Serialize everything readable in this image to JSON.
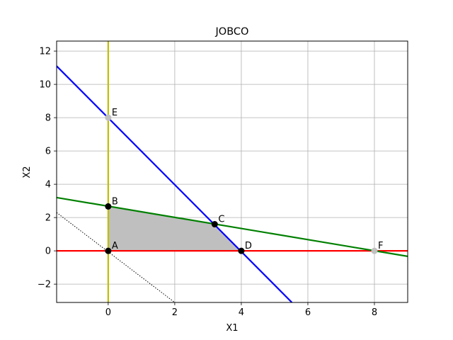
{
  "chart_data": {
    "type": "line",
    "title": "JOBCO",
    "xlabel": "X1",
    "ylabel": "X2",
    "xlim": [
      -1.55,
      9.0
    ],
    "ylim": [
      -3.1,
      12.6
    ],
    "grid": true,
    "xticks": [
      0,
      2,
      4,
      6,
      8
    ],
    "yticks": [
      -2,
      0,
      2,
      4,
      6,
      8,
      10,
      12
    ],
    "constraint_lines": [
      {
        "id": "x1-zero",
        "color": "#bfbf00",
        "points": [
          [
            0,
            -3.1
          ],
          [
            0,
            12.6
          ]
        ]
      },
      {
        "id": "x2-zero",
        "color": "#ff0000",
        "points": [
          [
            -1.55,
            0
          ],
          [
            9.0,
            0
          ]
        ]
      },
      {
        "id": "blue-constraint",
        "color": "#0000ff",
        "points": [
          [
            -1.55,
            11.1
          ],
          [
            5.52,
            -3.1
          ]
        ]
      },
      {
        "id": "green-constraint",
        "color": "#008000",
        "points": [
          [
            -1.55,
            3.2
          ],
          [
            9.0,
            -0.33
          ]
        ]
      },
      {
        "id": "objective-dotted",
        "color": "#000000",
        "dashed": true,
        "points": [
          [
            -1.55,
            2.3
          ],
          [
            2.0,
            -3.1
          ]
        ]
      }
    ],
    "feasible_region": {
      "color": "#bfbfbf",
      "points": [
        [
          0,
          0
        ],
        [
          0,
          2.67
        ],
        [
          3.2,
          1.6
        ],
        [
          4,
          0
        ]
      ]
    },
    "points": [
      {
        "label": "A",
        "x": 0,
        "y": 0,
        "color": "#000000"
      },
      {
        "label": "B",
        "x": 0,
        "y": 2.67,
        "color": "#000000"
      },
      {
        "label": "C",
        "x": 3.2,
        "y": 1.6,
        "color": "#000000"
      },
      {
        "label": "D",
        "x": 4,
        "y": 0,
        "color": "#000000"
      },
      {
        "label": "E",
        "x": 0,
        "y": 8,
        "color": "#c0c0c0"
      },
      {
        "label": "F",
        "x": 8,
        "y": 0,
        "color": "#c0c0c0"
      }
    ]
  }
}
